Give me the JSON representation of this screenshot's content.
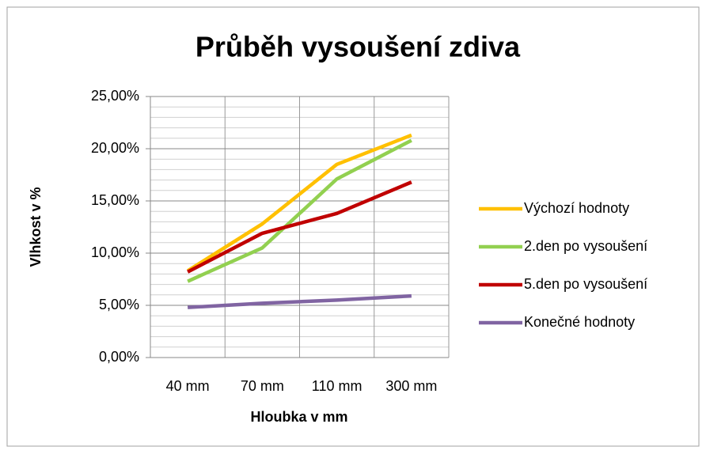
{
  "chart_data": {
    "type": "line",
    "title": "Průběh vysoušení zdiva",
    "x_label": "Hloubka v mm",
    "y_label": "Vlhkost v %",
    "categories": [
      "40 mm",
      "70 mm",
      "110 mm",
      "300 mm"
    ],
    "series": [
      {
        "name": "Výchozí hodnoty",
        "color": "#ffc000",
        "values": [
          8.3,
          12.8,
          18.5,
          21.3
        ]
      },
      {
        "name": "2.den po vysoušení",
        "color": "#92d050",
        "values": [
          7.3,
          10.5,
          17.1,
          20.8
        ]
      },
      {
        "name": "5.den po vysoušení",
        "color": "#c00000",
        "values": [
          8.2,
          11.9,
          13.8,
          16.8
        ]
      },
      {
        "name": "Konečné hodnoty",
        "color": "#8064a2",
        "values": [
          4.8,
          5.2,
          5.5,
          5.9
        ]
      }
    ],
    "ylim": [
      0,
      25
    ],
    "yticks": [
      {
        "value": 0,
        "label": "0,00%"
      },
      {
        "value": 5,
        "label": "5,00%"
      },
      {
        "value": 10,
        "label": "10,00%"
      },
      {
        "value": 15,
        "label": "15,00%"
      },
      {
        "value": 20,
        "label": "20,00%"
      },
      {
        "value": 25,
        "label": "25,00%"
      }
    ],
    "grid": true,
    "legend": "right"
  }
}
